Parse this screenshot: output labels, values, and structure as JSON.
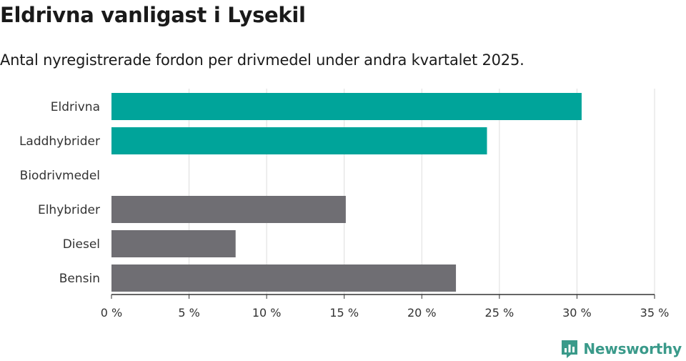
{
  "header": {
    "title": "Eldrivna vanligast i Lysekil",
    "subtitle": "Antal nyregistrerade fordon per drivmedel under andra kvartalet 2025."
  },
  "brand": {
    "name": "Newsworthy",
    "color": "#3a9a8a",
    "icon": "newsworthy-logo-icon"
  },
  "colors": {
    "highlight": "#00a49a",
    "default": "#6f6e73",
    "grid": "#dddddd",
    "axis": "#333333"
  },
  "chart_data": {
    "type": "bar",
    "orientation": "horizontal",
    "categories": [
      "Eldrivna",
      "Laddhybrider",
      "Biodrivmedel",
      "Elhybrider",
      "Diesel",
      "Bensin"
    ],
    "values": [
      30.3,
      24.2,
      0,
      15.1,
      8.0,
      22.2
    ],
    "highlighted": [
      true,
      true,
      false,
      false,
      false,
      false
    ],
    "xlim": [
      0,
      35
    ],
    "xticks": [
      0,
      5,
      10,
      15,
      20,
      25,
      30,
      35
    ],
    "tick_suffix": " %",
    "grid": true
  }
}
